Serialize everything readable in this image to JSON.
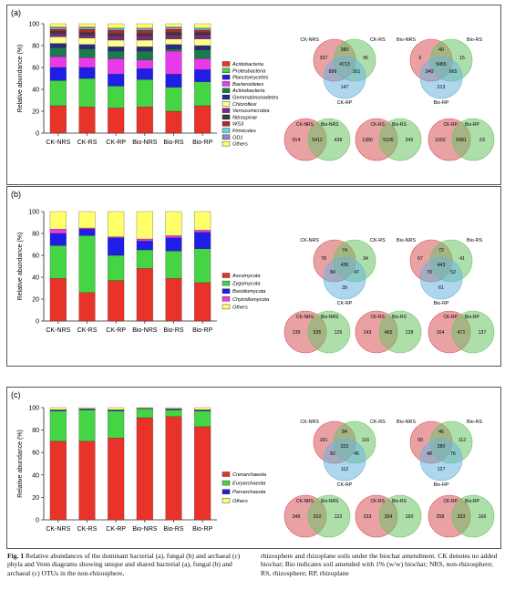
{
  "figure_label": "Fig. 1",
  "caption_left": "Relative abundances of the dominant bacterial (a), fungal (b) and archaeal (c) phyla and Venn diagrams showing unique and shared bacterial (a), fungal (b) and archaeal (c) OTUs in the non-rhizosphere,",
  "caption_right": "rhizosphere and rhizoplane soils under the biochar amendment. CK denotes no added biochar; Bio indicates soil amended with 1% (w/w) biochar; NRS, non-rhizosphere; RS, rhizosphere; RP, rhizoplane",
  "colors": {
    "Acidobacteria": "#e8322a",
    "Proteobacteria": "#44d444",
    "Planctomycetes": "#1e1ee6",
    "Bacteroidetes": "#e83ae8",
    "Actinobacteria": "#1a7a4a",
    "Gemmatimonadetes": "#2a2a80",
    "Chloroflexi": "#ffff8a",
    "Verrucomicrobia": "#7a2a7a",
    "Nitrospirae": "#3a3a3a",
    "WS3": "#b02a2a",
    "Firmicutes": "#6ad4d4",
    "OD1": "#8a8ad4",
    "Others": "#ffff6a",
    "Ascomycota": "#e8322a",
    "Zygomycota": "#44d444",
    "Basidiomycota": "#1e1ee6",
    "Chytridiomycota": "#e83ae8",
    "Crenarchaeota": "#e8322a",
    "Euryarchaeota": "#44d444",
    "Parvarchaeota": "#1e1ee6",
    "venn_red": "#d9545a",
    "venn_green": "#6cc466",
    "venn_blue": "#6bb4dc"
  },
  "chart_data": [
    {
      "panel": "(a)",
      "type": "bar",
      "stacked": true,
      "ylabel": "Relative abundance (%)",
      "ylim": [
        0,
        100
      ],
      "yticks": [
        0,
        20,
        40,
        60,
        80,
        100
      ],
      "categories": [
        "CK-NRS",
        "CK-RS",
        "CK-RP",
        "Bio-NRS",
        "Bio-RS",
        "Bio-RP"
      ],
      "series": [
        {
          "name": "Acidobacteria",
          "values": [
            25,
            24,
            23,
            24,
            20,
            25
          ]
        },
        {
          "name": "Proteobacteria",
          "values": [
            23,
            26,
            20,
            25,
            22,
            22
          ]
        },
        {
          "name": "Planctomycetes",
          "values": [
            12,
            10,
            11,
            10,
            12,
            11
          ]
        },
        {
          "name": "Bacteroidetes",
          "values": [
            10,
            9,
            14,
            8,
            21,
            10
          ]
        },
        {
          "name": "Actinobacteria",
          "values": [
            8,
            8,
            7,
            8,
            2,
            8
          ]
        },
        {
          "name": "Gemmatimonadetes",
          "values": [
            4,
            4,
            4,
            4,
            4,
            4
          ]
        },
        {
          "name": "Chloroflexi",
          "values": [
            6,
            6,
            6,
            6,
            5,
            6
          ]
        },
        {
          "name": "Verrucomicrobia",
          "values": [
            3,
            3,
            4,
            4,
            4,
            4
          ]
        },
        {
          "name": "Nitrospirae",
          "values": [
            2,
            2,
            2,
            2,
            2,
            2
          ]
        },
        {
          "name": "WS3",
          "values": [
            2,
            3,
            3,
            3,
            3,
            2
          ]
        },
        {
          "name": "Firmicutes",
          "values": [
            1,
            1,
            1,
            1,
            1,
            1
          ]
        },
        {
          "name": "OD1",
          "values": [
            1,
            1,
            1,
            1,
            1,
            1
          ]
        },
        {
          "name": "Others",
          "values": [
            3,
            3,
            4,
            4,
            3,
            4
          ]
        }
      ],
      "legend": [
        "Acidobacteria",
        "Proteobacteria",
        "Planctomycetes",
        "Bacteroidetes",
        "Actinobacteria",
        "Gemmatimonadetes",
        "Chloroflexi",
        "Verrucomicrobia",
        "Nitrospirae",
        "WS3",
        "Firmicutes",
        "OD1",
        "Others"
      ]
    },
    {
      "panel": "(b)",
      "type": "bar",
      "stacked": true,
      "ylabel": "Relative abundance (%)",
      "ylim": [
        0,
        100
      ],
      "yticks": [
        0,
        20,
        40,
        60,
        80,
        100
      ],
      "categories": [
        "CK-NRS",
        "CK-RS",
        "CK-RP",
        "Bio-NRS",
        "Bio-RS",
        "Bio-RP"
      ],
      "series": [
        {
          "name": "Ascomycota",
          "values": [
            39,
            26,
            37,
            48,
            39,
            35
          ]
        },
        {
          "name": "Zygomycota",
          "values": [
            30,
            52,
            23,
            17,
            25,
            31
          ]
        },
        {
          "name": "Basidiomycota",
          "values": [
            11,
            6,
            16,
            8,
            12,
            15
          ]
        },
        {
          "name": "Chytridiomycota",
          "values": [
            4,
            1,
            1,
            2,
            2,
            2
          ]
        },
        {
          "name": "Others",
          "values": [
            16,
            15,
            23,
            25,
            22,
            17
          ]
        }
      ],
      "legend": [
        "Ascomycota",
        "Zygomycota",
        "Basidiomycota",
        "Chytridiomycota",
        "Others"
      ]
    },
    {
      "panel": "(c)",
      "type": "bar",
      "stacked": true,
      "ylabel": "Relative abundance (%)",
      "ylim": [
        0,
        100
      ],
      "yticks": [
        0,
        20,
        40,
        60,
        80,
        100
      ],
      "categories": [
        "CK-NRS",
        "CK-RS",
        "CK-RP",
        "Bio-NRS",
        "Bio-RS",
        "Bio-RP"
      ],
      "series": [
        {
          "name": "Crenarchaeota",
          "values": [
            70,
            70,
            73,
            91,
            92,
            83
          ]
        },
        {
          "name": "Euryarchaeota",
          "values": [
            27,
            28,
            24,
            8,
            6,
            14
          ]
        },
        {
          "name": "Parvarchaeota",
          "values": [
            1,
            1,
            1,
            0.5,
            1,
            1
          ]
        },
        {
          "name": "Others",
          "values": [
            2,
            1,
            2,
            0.5,
            1,
            2
          ]
        }
      ],
      "legend": [
        "Crenarchaeota",
        "Euryarchaeota",
        "Parvarchaeota",
        "Others"
      ]
    }
  ],
  "venn": [
    {
      "panel": "(a)",
      "triple": [
        {
          "labels": [
            "CK-NRS",
            "CK-RS",
            "CK-RP"
          ],
          "only1": "337",
          "only2": "96",
          "only3": "147",
          "i12": "380",
          "i13": "896",
          "i23": "261",
          "i123": "4713"
        },
        {
          "labels": [
            "Bio-NRS",
            "Bio-RS",
            "Bio-RP"
          ],
          "only1": "5",
          "only2": "15",
          "only3": "213",
          "i12": "40",
          "i13": "340",
          "i23": "965",
          "i123": "5455"
        }
      ],
      "pairs": [
        {
          "labels": [
            "CK-NRS",
            "Bio-NRS"
          ],
          "left": "914",
          "mid": "5412",
          "right": "438"
        },
        {
          "labels": [
            "CK-RS",
            "Bio-RS"
          ],
          "left": "1380",
          "mid": "5105",
          "right": "345"
        },
        {
          "labels": [
            "CK-RP",
            "Bio-RP"
          ],
          "left": "1002",
          "mid": "5981",
          "right": "63"
        }
      ]
    },
    {
      "panel": "(b)",
      "triple": [
        {
          "labels": [
            "CK-NRS",
            "CK-RS",
            "CK-RP"
          ],
          "only1": "78",
          "only2": "34",
          "only3": "39",
          "i12": "74",
          "i13": "84",
          "i23": "47",
          "i123": "436"
        },
        {
          "labels": [
            "Bio-NRS",
            "Bio-RS",
            "Bio-RP"
          ],
          "only1": "67",
          "only2": "41",
          "only3": "61",
          "i12": "72",
          "i13": "79",
          "i23": "52",
          "i123": "443"
        }
      ],
      "pairs": [
        {
          "labels": [
            "CK-NRS",
            "Bio-NRS"
          ],
          "left": "139",
          "mid": "535",
          "right": "126"
        },
        {
          "labels": [
            "CK-RS",
            "Bio-RS"
          ],
          "left": "143",
          "mid": "465",
          "right": "128"
        },
        {
          "labels": [
            "CK-RP",
            "Bio-RP"
          ],
          "left": "164",
          "mid": "471",
          "right": "137"
        }
      ]
    },
    {
      "panel": "(c)",
      "triple": [
        {
          "labels": [
            "CK-NRS",
            "CK-RS",
            "CK-RP"
          ],
          "only1": "191",
          "only2": "116",
          "only3": "112",
          "i12": "84",
          "i13": "82",
          "i23": "45",
          "i123": "322"
        },
        {
          "labels": [
            "Bio-NRS",
            "Bio-RS",
            "Bio-RP"
          ],
          "only1": "90",
          "only2": "112",
          "only3": "127",
          "i12": "46",
          "i13": "48",
          "i23": "76",
          "i123": "280"
        }
      ],
      "pairs": [
        {
          "labels": [
            "CK-NRS",
            "Bio-NRS"
          ],
          "left": "349",
          "mid": "310",
          "right": "122"
        },
        {
          "labels": [
            "CK-RS",
            "Bio-RS"
          ],
          "left": "233",
          "mid": "334",
          "right": "150"
        },
        {
          "labels": [
            "CK-RP",
            "Bio-RP"
          ],
          "left": "258",
          "mid": "333",
          "right": "166"
        }
      ]
    }
  ]
}
